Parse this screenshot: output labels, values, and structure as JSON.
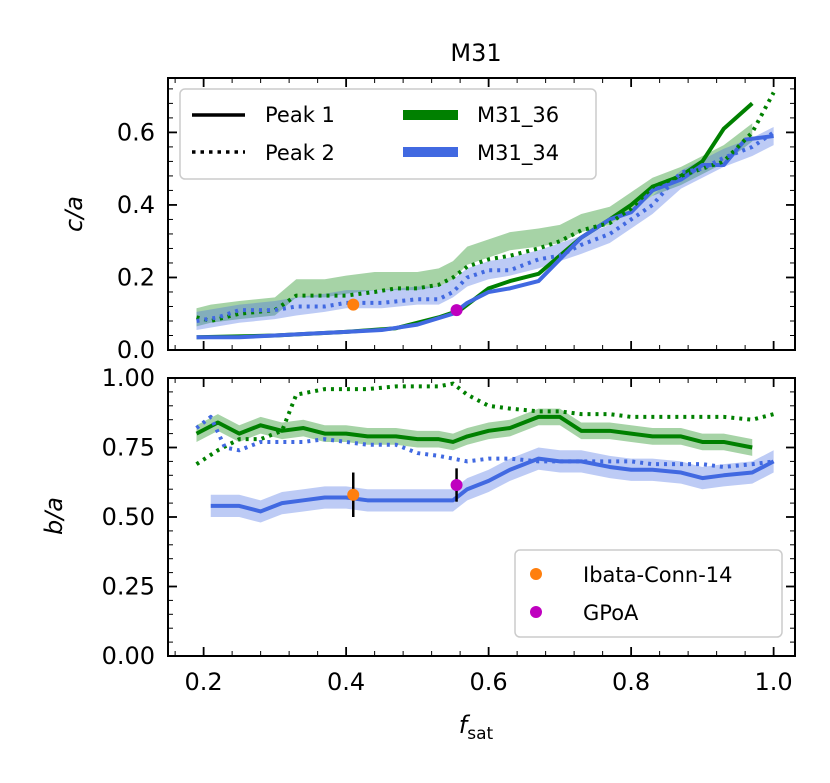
{
  "title": "M31",
  "chart_data": [
    {
      "type": "line",
      "panel": "top",
      "ylabel": "c/a",
      "ylim": [
        0.0,
        0.75
      ],
      "xlim": [
        0.15,
        1.03
      ],
      "yticks": [
        0.0,
        0.2,
        0.4,
        0.6
      ],
      "ytick_labels": [
        "0.0",
        "0.2",
        "0.4",
        "0.6"
      ],
      "legend": {
        "placement": "top-left",
        "entries": [
          {
            "label": "Peak 1",
            "style": "solid",
            "color": "#000000"
          },
          {
            "label": "M31_36",
            "style": "band",
            "color": "#008000"
          },
          {
            "label": "Peak 2",
            "style": "dotted",
            "color": "#000000"
          },
          {
            "label": "M31_34",
            "style": "band",
            "color": "#4169e1"
          }
        ]
      },
      "series": [
        {
          "name": "M31_36 Peak 1",
          "color": "#008000",
          "style": "solid",
          "x": [
            0.19,
            0.3,
            0.4,
            0.47,
            0.53,
            0.56,
            0.58,
            0.6,
            0.63,
            0.67,
            0.7,
            0.73,
            0.77,
            0.8,
            0.83,
            0.87,
            0.9,
            0.93,
            0.97
          ],
          "y": [
            0.035,
            0.04,
            0.05,
            0.06,
            0.09,
            0.11,
            0.14,
            0.17,
            0.19,
            0.21,
            0.26,
            0.31,
            0.36,
            0.4,
            0.45,
            0.48,
            0.52,
            0.61,
            0.68
          ]
        },
        {
          "name": "M31_34 Peak 1",
          "color": "#4169e1",
          "style": "solid",
          "x": [
            0.19,
            0.25,
            0.3,
            0.35,
            0.4,
            0.45,
            0.5,
            0.55,
            0.57,
            0.6,
            0.63,
            0.67,
            0.7,
            0.73,
            0.77,
            0.8,
            0.83,
            0.87,
            0.9,
            0.93,
            0.96,
            1.0
          ],
          "y": [
            0.035,
            0.035,
            0.04,
            0.045,
            0.05,
            0.055,
            0.07,
            0.1,
            0.13,
            0.16,
            0.17,
            0.19,
            0.25,
            0.31,
            0.36,
            0.38,
            0.44,
            0.47,
            0.51,
            0.51,
            0.58,
            0.59
          ]
        },
        {
          "name": "M31_36 Peak 2",
          "color": "#008000",
          "style": "dotted",
          "x": [
            0.19,
            0.21,
            0.25,
            0.3,
            0.33,
            0.37,
            0.4,
            0.44,
            0.47,
            0.5,
            0.53,
            0.55,
            0.57,
            0.6,
            0.63,
            0.67,
            0.7,
            0.73,
            0.77,
            0.8,
            0.83,
            0.87,
            0.9,
            0.93,
            0.97,
            1.0
          ],
          "y": [
            0.09,
            0.08,
            0.1,
            0.11,
            0.15,
            0.15,
            0.15,
            0.16,
            0.17,
            0.17,
            0.18,
            0.2,
            0.23,
            0.25,
            0.26,
            0.28,
            0.3,
            0.33,
            0.35,
            0.39,
            0.45,
            0.48,
            0.5,
            0.52,
            0.6,
            0.71
          ]
        },
        {
          "name": "M31_34 Peak 2",
          "color": "#4169e1",
          "style": "dotted",
          "x": [
            0.19,
            0.22,
            0.25,
            0.3,
            0.33,
            0.37,
            0.4,
            0.45,
            0.5,
            0.53,
            0.55,
            0.57,
            0.6,
            0.63,
            0.67,
            0.7,
            0.73,
            0.77,
            0.8,
            0.83,
            0.87,
            0.9,
            0.93,
            0.97,
            1.0
          ],
          "y": [
            0.08,
            0.09,
            0.11,
            0.11,
            0.12,
            0.12,
            0.13,
            0.13,
            0.14,
            0.14,
            0.16,
            0.2,
            0.22,
            0.22,
            0.25,
            0.26,
            0.29,
            0.32,
            0.36,
            0.4,
            0.49,
            0.5,
            0.53,
            0.56,
            0.6
          ]
        },
        {
          "name": "M31_36 band",
          "color": "#008000",
          "style": "band",
          "half_width": 0.025,
          "x": [
            0.19,
            0.21,
            0.25,
            0.3,
            0.33,
            0.37,
            0.4,
            0.44,
            0.47,
            0.5,
            0.53,
            0.55,
            0.57,
            0.6,
            0.63,
            0.67,
            0.7,
            0.73,
            0.77,
            0.8,
            0.83,
            0.87,
            0.9,
            0.93,
            0.97
          ],
          "y": [
            0.09,
            0.1,
            0.11,
            0.12,
            0.17,
            0.17,
            0.18,
            0.19,
            0.19,
            0.19,
            0.2,
            0.22,
            0.26,
            0.28,
            0.3,
            0.31,
            0.32,
            0.35,
            0.37,
            0.41,
            0.45,
            0.48,
            0.51,
            0.54,
            0.6
          ]
        },
        {
          "name": "M31_34 band",
          "color": "#4169e1",
          "style": "band",
          "half_width": 0.025,
          "x": [
            0.19,
            0.22,
            0.25,
            0.3,
            0.33,
            0.37,
            0.4,
            0.45,
            0.5,
            0.53,
            0.55,
            0.57,
            0.6,
            0.63,
            0.67,
            0.7,
            0.73,
            0.77,
            0.8,
            0.83,
            0.87,
            0.9,
            0.93,
            0.97,
            1.0
          ],
          "y": [
            0.08,
            0.09,
            0.1,
            0.11,
            0.12,
            0.13,
            0.14,
            0.14,
            0.15,
            0.15,
            0.17,
            0.2,
            0.22,
            0.23,
            0.25,
            0.27,
            0.29,
            0.32,
            0.36,
            0.4,
            0.47,
            0.5,
            0.53,
            0.56,
            0.59
          ]
        }
      ],
      "points": [
        {
          "name": "Ibata-Conn-14",
          "x": 0.41,
          "y": 0.125,
          "color": "#ff7f0e"
        },
        {
          "name": "GPoA",
          "x": 0.555,
          "y": 0.11,
          "color": "#bf00bf"
        }
      ]
    },
    {
      "type": "line",
      "panel": "bottom",
      "ylabel": "b/a",
      "xlabel": "f_sat",
      "xlabel_main": "f",
      "xlabel_sub": "sat",
      "ylim": [
        0.0,
        1.0
      ],
      "xlim": [
        0.15,
        1.03
      ],
      "xticks": [
        0.2,
        0.4,
        0.6,
        0.8,
        1.0
      ],
      "xtick_labels": [
        "0.2",
        "0.4",
        "0.6",
        "0.8",
        "1.0"
      ],
      "yticks": [
        0.0,
        0.25,
        0.5,
        0.75,
        1.0
      ],
      "ytick_labels": [
        "0.00",
        "0.25",
        "0.50",
        "0.75",
        "1.00"
      ],
      "legend": {
        "placement": "bottom-right",
        "entries": [
          {
            "label": "Ibata-Conn-14",
            "marker": "circle",
            "color": "#ff7f0e"
          },
          {
            "label": "GPoA",
            "marker": "circle",
            "color": "#bf00bf"
          }
        ]
      },
      "series": [
        {
          "name": "M31_36 Peak 1",
          "color": "#008000",
          "style": "solid",
          "x": [
            0.19,
            0.22,
            0.25,
            0.28,
            0.31,
            0.34,
            0.37,
            0.4,
            0.43,
            0.47,
            0.5,
            0.53,
            0.55,
            0.57,
            0.6,
            0.63,
            0.67,
            0.7,
            0.73,
            0.77,
            0.8,
            0.83,
            0.87,
            0.9,
            0.93,
            0.97
          ],
          "y": [
            0.8,
            0.84,
            0.8,
            0.83,
            0.81,
            0.82,
            0.8,
            0.8,
            0.79,
            0.79,
            0.78,
            0.78,
            0.77,
            0.79,
            0.81,
            0.82,
            0.86,
            0.86,
            0.81,
            0.81,
            0.8,
            0.79,
            0.79,
            0.77,
            0.77,
            0.75
          ]
        },
        {
          "name": "M31_34 Peak 1",
          "color": "#4169e1",
          "style": "solid",
          "x": [
            0.21,
            0.25,
            0.28,
            0.31,
            0.34,
            0.37,
            0.4,
            0.43,
            0.47,
            0.5,
            0.53,
            0.55,
            0.57,
            0.6,
            0.63,
            0.67,
            0.7,
            0.73,
            0.77,
            0.8,
            0.83,
            0.87,
            0.9,
            0.93,
            0.97,
            1.0
          ],
          "y": [
            0.54,
            0.54,
            0.52,
            0.55,
            0.56,
            0.57,
            0.57,
            0.56,
            0.56,
            0.56,
            0.56,
            0.56,
            0.6,
            0.63,
            0.67,
            0.71,
            0.7,
            0.7,
            0.68,
            0.67,
            0.67,
            0.66,
            0.64,
            0.65,
            0.66,
            0.7
          ]
        },
        {
          "name": "M31_36 Peak 2",
          "color": "#008000",
          "style": "dotted",
          "x": [
            0.19,
            0.22,
            0.25,
            0.28,
            0.31,
            0.33,
            0.37,
            0.4,
            0.43,
            0.47,
            0.5,
            0.53,
            0.55,
            0.57,
            0.6,
            0.63,
            0.67,
            0.7,
            0.73,
            0.77,
            0.8,
            0.83,
            0.87,
            0.9,
            0.93,
            0.97,
            1.0
          ],
          "y": [
            0.69,
            0.74,
            0.78,
            0.78,
            0.81,
            0.94,
            0.96,
            0.96,
            0.96,
            0.97,
            0.97,
            0.97,
            0.98,
            0.94,
            0.9,
            0.89,
            0.88,
            0.88,
            0.87,
            0.87,
            0.86,
            0.86,
            0.86,
            0.86,
            0.86,
            0.85,
            0.87
          ]
        },
        {
          "name": "M31_34 Peak 2",
          "color": "#4169e1",
          "style": "dotted",
          "x": [
            0.19,
            0.21,
            0.23,
            0.25,
            0.28,
            0.31,
            0.34,
            0.37,
            0.4,
            0.43,
            0.47,
            0.5,
            0.53,
            0.55,
            0.57,
            0.6,
            0.63,
            0.67,
            0.7,
            0.73,
            0.77,
            0.8,
            0.83,
            0.87,
            0.9,
            0.93,
            0.97,
            1.0
          ],
          "y": [
            0.82,
            0.86,
            0.75,
            0.74,
            0.77,
            0.77,
            0.77,
            0.78,
            0.77,
            0.76,
            0.76,
            0.73,
            0.72,
            0.71,
            0.7,
            0.71,
            0.71,
            0.7,
            0.7,
            0.7,
            0.7,
            0.7,
            0.69,
            0.69,
            0.69,
            0.68,
            0.69,
            0.7
          ]
        },
        {
          "name": "M31_36 band",
          "color": "#008000",
          "style": "band",
          "half_width": 0.03,
          "x": [
            0.19,
            0.22,
            0.25,
            0.28,
            0.31,
            0.34,
            0.37,
            0.4,
            0.43,
            0.47,
            0.5,
            0.53,
            0.55,
            0.57,
            0.6,
            0.63,
            0.67,
            0.7,
            0.73,
            0.77,
            0.8,
            0.83,
            0.87,
            0.9,
            0.93,
            0.97
          ],
          "y": [
            0.8,
            0.84,
            0.8,
            0.83,
            0.81,
            0.82,
            0.8,
            0.8,
            0.79,
            0.79,
            0.78,
            0.78,
            0.77,
            0.79,
            0.81,
            0.82,
            0.86,
            0.86,
            0.81,
            0.81,
            0.8,
            0.79,
            0.79,
            0.77,
            0.77,
            0.75
          ]
        },
        {
          "name": "M31_34 band",
          "color": "#4169e1",
          "style": "band",
          "half_width": 0.04,
          "x": [
            0.21,
            0.25,
            0.28,
            0.31,
            0.34,
            0.37,
            0.4,
            0.43,
            0.47,
            0.5,
            0.53,
            0.55,
            0.57,
            0.6,
            0.63,
            0.67,
            0.7,
            0.73,
            0.77,
            0.8,
            0.83,
            0.87,
            0.9,
            0.93,
            0.97,
            1.0
          ],
          "y": [
            0.54,
            0.54,
            0.52,
            0.55,
            0.56,
            0.57,
            0.57,
            0.56,
            0.56,
            0.56,
            0.56,
            0.56,
            0.6,
            0.63,
            0.67,
            0.71,
            0.7,
            0.7,
            0.68,
            0.67,
            0.67,
            0.66,
            0.64,
            0.65,
            0.66,
            0.7
          ]
        }
      ],
      "points": [
        {
          "name": "Ibata-Conn-14",
          "x": 0.41,
          "y": 0.58,
          "err": 0.08,
          "color": "#ff7f0e"
        },
        {
          "name": "GPoA",
          "x": 0.555,
          "y": 0.615,
          "err": 0.06,
          "color": "#bf00bf"
        }
      ]
    }
  ]
}
